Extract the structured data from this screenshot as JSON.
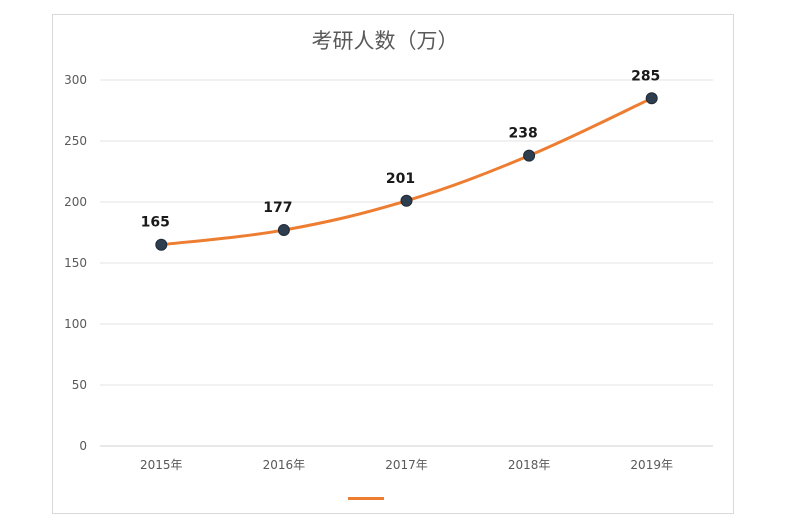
{
  "chart_data": {
    "type": "line",
    "title": "考研人数（万）",
    "categories": [
      "2015年",
      "2016年",
      "2017年",
      "2018年",
      "2019年"
    ],
    "series": [
      {
        "values": [
          165,
          177,
          201,
          238,
          285
        ],
        "color": "#ed7d31",
        "marker_color": "#2f3e4e"
      }
    ],
    "data_labels": [
      "165",
      "177",
      "201",
      "238",
      "285"
    ],
    "ylim": [
      0,
      300
    ],
    "yticks": [
      0,
      50,
      100,
      150,
      200,
      250,
      300
    ],
    "grid": true,
    "smooth": true,
    "legend": "bottom"
  }
}
